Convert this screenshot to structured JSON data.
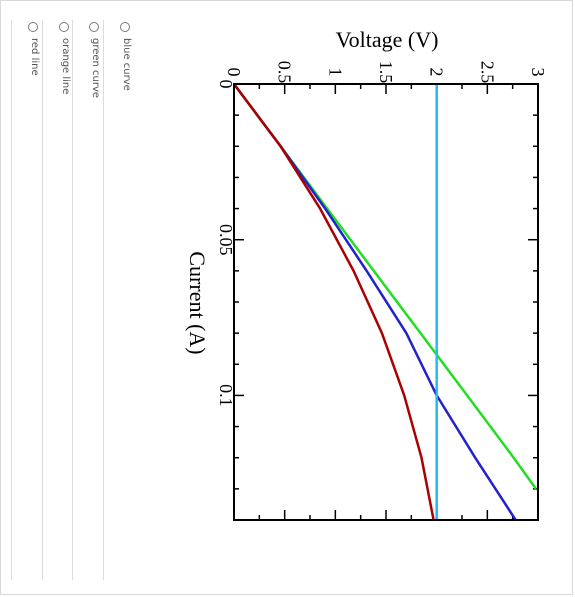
{
  "options": [
    {
      "label": "blue curve"
    },
    {
      "label": "green curve"
    },
    {
      "label": "orange line"
    },
    {
      "label": "red line"
    }
  ],
  "chart_data": {
    "type": "line",
    "xlabel": "Current (A)",
    "ylabel": "Voltage (V)",
    "xlim": [
      0,
      0.14
    ],
    "ylim": [
      0,
      3
    ],
    "xticks": [
      "0",
      "0.05",
      "0.1"
    ],
    "yticks": [
      "0",
      "0.5",
      "1",
      "1.5",
      "2",
      "2.5",
      "3"
    ],
    "grid": false,
    "series": [
      {
        "color": "#22dd22",
        "x": [
          0,
          0.02,
          0.04,
          0.06,
          0.08,
          0.1,
          0.12,
          0.13
        ],
        "y": [
          0,
          0.46,
          0.92,
          1.38,
          1.84,
          2.3,
          2.76,
          2.98
        ]
      },
      {
        "color": "#2222cc",
        "x": [
          0,
          0.02,
          0.04,
          0.06,
          0.08,
          0.1,
          0.12,
          0.14
        ],
        "y": [
          0,
          0.46,
          0.9,
          1.31,
          1.7,
          2.0,
          2.38,
          2.78
        ]
      },
      {
        "color": "#aa0000",
        "x": [
          0,
          0.02,
          0.04,
          0.06,
          0.08,
          0.1,
          0.12,
          0.14
        ],
        "y": [
          0,
          0.46,
          0.85,
          1.18,
          1.46,
          1.68,
          1.85,
          1.97
        ]
      },
      {
        "color": "#22bbee",
        "x": [
          0,
          0.14
        ],
        "y": [
          2,
          2
        ]
      }
    ]
  }
}
